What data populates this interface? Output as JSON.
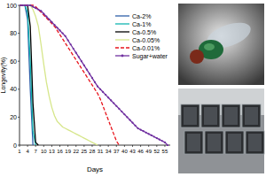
{
  "chart_data": {
    "type": "line",
    "x_label": "Days",
    "y_label": "Longevity(%)",
    "x": [
      1,
      2,
      3,
      4,
      5,
      6,
      7,
      8,
      9,
      10,
      11,
      12,
      13,
      14,
      15,
      16,
      17,
      18,
      19,
      20,
      21,
      22,
      23,
      24,
      25,
      26,
      27,
      28,
      29,
      30,
      31,
      32,
      33,
      34,
      35,
      36,
      37,
      38,
      39,
      40,
      41,
      42,
      43,
      44,
      45,
      46,
      47,
      48,
      49,
      50,
      51,
      52,
      53,
      54,
      55,
      56
    ],
    "xlim": [
      1,
      57
    ],
    "xticks": [
      1,
      4,
      7,
      10,
      13,
      16,
      19,
      22,
      25,
      28,
      31,
      34,
      37,
      40,
      43,
      46,
      49,
      52,
      55
    ],
    "ylim": [
      0,
      100
    ],
    "yticks": [
      0,
      20,
      40,
      60,
      80,
      100
    ],
    "grid": false,
    "legend": "upper right",
    "series": [
      {
        "name": "Ca-2%",
        "color": "#2e5fa8",
        "line_style": "solid",
        "values": [
          100,
          100,
          100,
          90,
          40,
          0,
          null,
          null,
          null,
          null,
          null,
          null,
          null,
          null,
          null,
          null,
          null,
          null,
          null,
          null,
          null,
          null,
          null,
          null,
          null,
          null,
          null,
          null,
          null,
          null,
          null,
          null,
          null,
          null,
          null,
          null,
          null,
          null,
          null,
          null,
          null,
          null,
          null,
          null,
          null,
          null,
          null,
          null,
          null,
          null,
          null,
          null,
          null,
          null,
          null,
          null
        ]
      },
      {
        "name": "Ca-1%",
        "color": "#12b5b0",
        "line_style": "solid",
        "values": [
          100,
          100,
          100,
          95,
          60,
          10,
          0,
          null,
          null,
          null,
          null,
          null,
          null,
          null,
          null,
          null,
          null,
          null,
          null,
          null,
          null,
          null,
          null,
          null,
          null,
          null,
          null,
          null,
          null,
          null,
          null,
          null,
          null,
          null,
          null,
          null,
          null,
          null,
          null,
          null,
          null,
          null,
          null,
          null,
          null,
          null,
          null,
          null,
          null,
          null,
          null,
          null,
          null,
          null,
          null,
          null
        ]
      },
      {
        "name": "Ca-0.5%",
        "color": "#000000",
        "line_style": "solid",
        "values": [
          100,
          100,
          100,
          100,
          85,
          30,
          2,
          0,
          null,
          null,
          null,
          null,
          null,
          null,
          null,
          null,
          null,
          null,
          null,
          null,
          null,
          null,
          null,
          null,
          null,
          null,
          null,
          null,
          null,
          null,
          null,
          null,
          null,
          null,
          null,
          null,
          null,
          null,
          null,
          null,
          null,
          null,
          null,
          null,
          null,
          null,
          null,
          null,
          null,
          null,
          null,
          null,
          null,
          null,
          null,
          null
        ]
      },
      {
        "name": "Ca-0.05%",
        "color": "#d6e68a",
        "line_style": "solid",
        "values": [
          100,
          100,
          100,
          100,
          100,
          97,
          92,
          85,
          72,
          58,
          45,
          35,
          27,
          21,
          17,
          15,
          13,
          12,
          11,
          10,
          9,
          8,
          7,
          6,
          5,
          4,
          3,
          2,
          1,
          0,
          null,
          null,
          null,
          null,
          null,
          null,
          null,
          null,
          null,
          null,
          null,
          null,
          null,
          null,
          null,
          null,
          null,
          null,
          null,
          null,
          null,
          null,
          null,
          null,
          null,
          null
        ]
      },
      {
        "name": "Ca-0.01%",
        "color": "#e8141c",
        "line_style": "dashed",
        "values": [
          100,
          100,
          100,
          100,
          100,
          100,
          99,
          97,
          95,
          93,
          91,
          89,
          87,
          85,
          82,
          79,
          76,
          73,
          70,
          67,
          64,
          61,
          58,
          55,
          52,
          49,
          46,
          43,
          40,
          37,
          33,
          28,
          23,
          18,
          13,
          8,
          3,
          0,
          null,
          null,
          null,
          null,
          null,
          null,
          null,
          null,
          null,
          null,
          null,
          null,
          null,
          null,
          null,
          null,
          null,
          null
        ]
      },
      {
        "name": "Sugar+water",
        "color": "#7030a0",
        "line_style": "solid",
        "marker": "circle",
        "values": [
          100,
          100,
          100,
          100,
          100,
          99,
          98,
          97,
          96,
          94,
          92,
          90,
          88,
          86,
          84,
          82,
          80,
          78,
          75,
          72,
          69,
          66,
          63,
          60,
          57,
          54,
          51,
          48,
          45,
          42,
          40,
          38,
          36,
          34,
          32,
          30,
          28,
          26,
          24,
          22,
          20,
          18,
          16,
          14,
          12,
          11,
          10,
          9,
          8,
          7,
          6,
          5,
          4,
          3,
          2,
          0
        ]
      }
    ]
  }
}
